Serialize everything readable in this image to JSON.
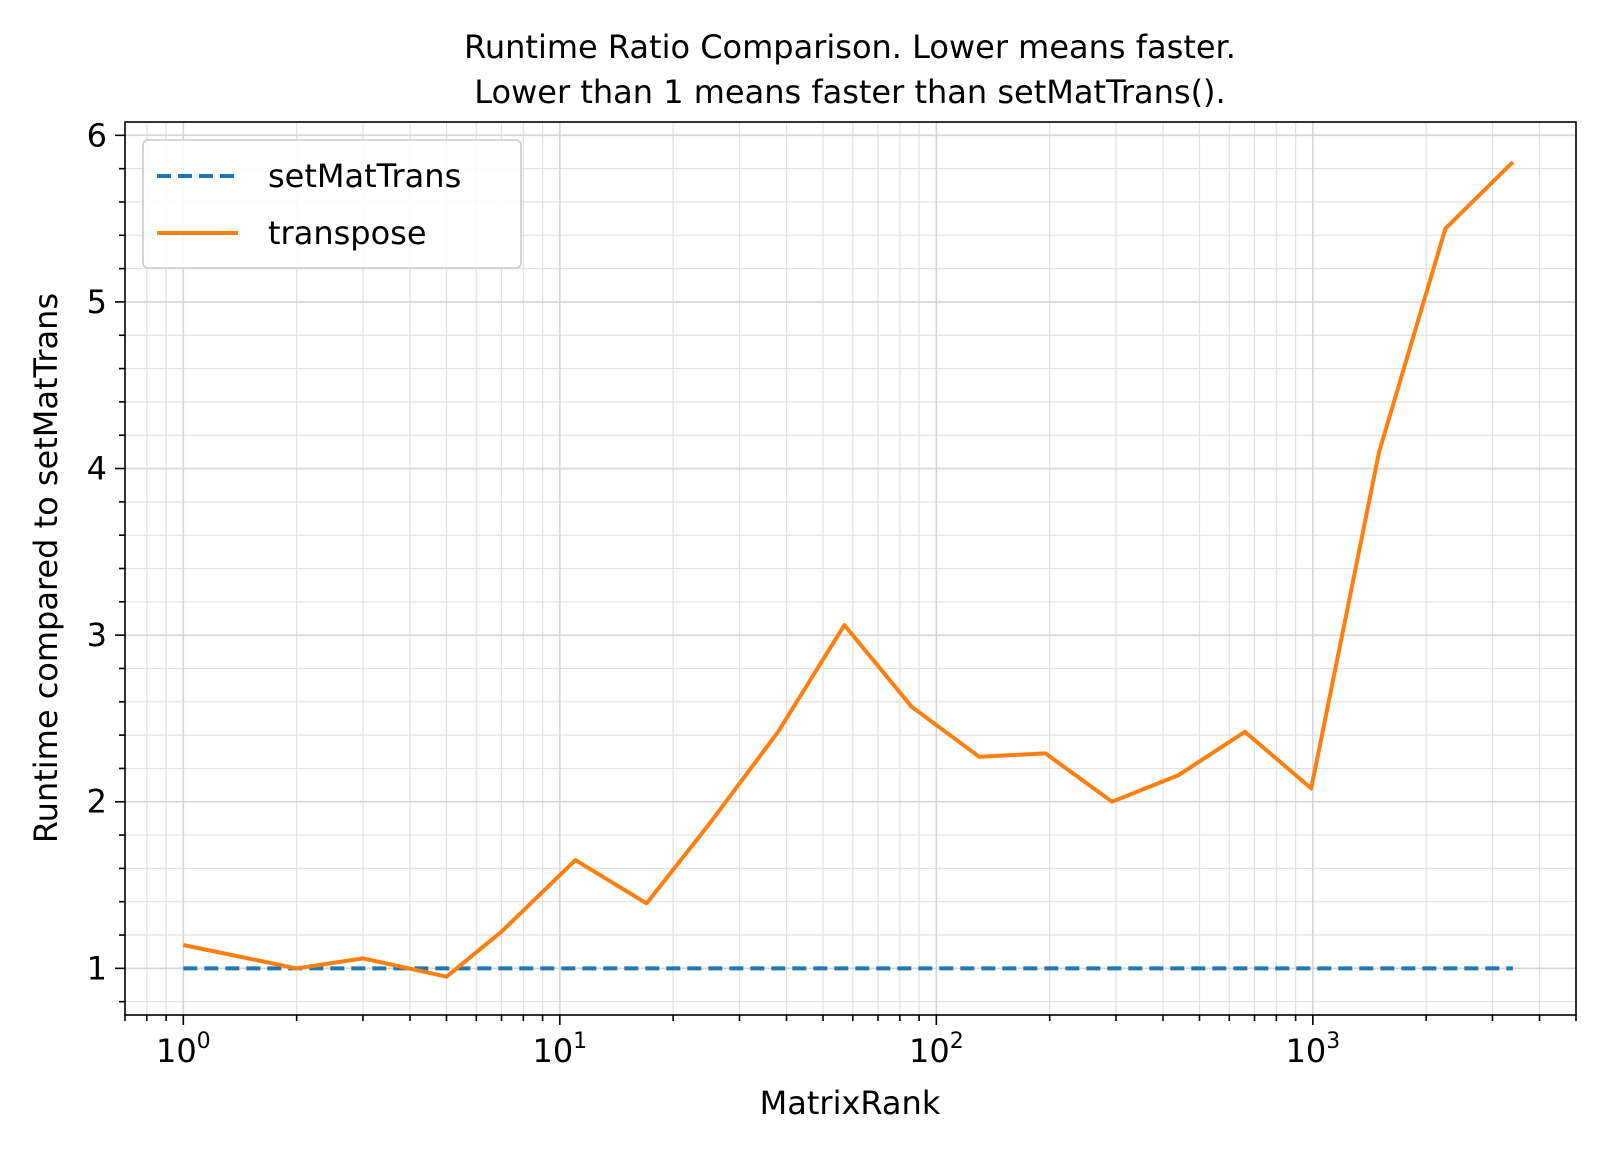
{
  "chart_data": {
    "type": "line",
    "title_lines": [
      "Runtime Ratio Comparison. Lower means faster.",
      "Lower than 1 means faster than setMatTrans()."
    ],
    "xlabel": "MatrixRank",
    "ylabel": "Runtime compared to setMatTrans",
    "xscale": "log",
    "xlim": [
      0.7,
      5000
    ],
    "ylim": [
      0.72,
      6.08
    ],
    "x_ticks": [
      {
        "base": "10",
        "exp": "0",
        "value": 1
      },
      {
        "base": "10",
        "exp": "1",
        "value": 10
      },
      {
        "base": "10",
        "exp": "2",
        "value": 100
      },
      {
        "base": "10",
        "exp": "3",
        "value": 1000
      }
    ],
    "y_ticks": [
      "1",
      "2",
      "3",
      "4",
      "5",
      "6"
    ],
    "grid": true,
    "legend_position": "top-left",
    "series": [
      {
        "name": "setMatTrans",
        "color": "#1f77b4",
        "dash": "dashed",
        "x": [
          1,
          3400
        ],
        "y": [
          1.0,
          1.0
        ]
      },
      {
        "name": "transpose",
        "color": "#ff7f0e",
        "dash": "solid",
        "x": [
          1,
          2,
          3,
          5,
          7,
          11,
          17,
          25,
          38,
          57,
          86,
          130,
          195,
          293,
          440,
          660,
          990,
          1500,
          2250,
          3400
        ],
        "y": [
          1.14,
          1.0,
          1.06,
          0.95,
          1.22,
          1.65,
          1.39,
          1.87,
          2.42,
          3.06,
          2.57,
          2.27,
          2.29,
          2.0,
          2.16,
          2.42,
          2.08,
          4.1,
          5.44,
          5.84
        ]
      }
    ]
  }
}
